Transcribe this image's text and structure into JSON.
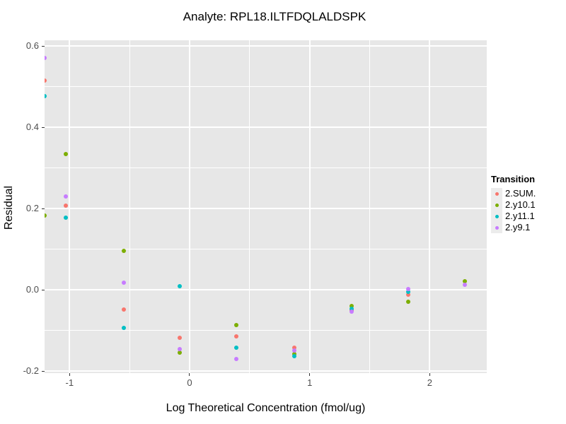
{
  "chart_data": {
    "type": "scatter",
    "title": "Analyte: RPL18.ILTFDQLALDSPK",
    "xlabel": "Log Theoretical Concentration (fmol/ug)",
    "ylabel": "Residual",
    "xlim": [
      -1.208,
      2.475
    ],
    "ylim": [
      -0.205,
      0.614
    ],
    "x_major_ticks": [
      -1,
      0,
      1,
      2
    ],
    "x_tick_labels": [
      "-1",
      "0",
      "1",
      "2"
    ],
    "x_minor_ticks": [
      -0.5,
      0.5,
      1.5
    ],
    "y_major_ticks": [
      -0.2,
      0.0,
      0.2,
      0.4,
      0.6
    ],
    "y_tick_labels": [
      "-0.2",
      "0.0",
      "0.2",
      "0.4",
      "0.6"
    ],
    "y_minor_ticks": [
      -0.1,
      0.1,
      0.3,
      0.5
    ],
    "grid": true,
    "panel_bg": "#E7E7E7",
    "gridline_color": "#FFFFFF",
    "legend": {
      "title": "Transition",
      "position": "right",
      "entries": [
        {
          "label": "2.SUM.",
          "color": "#F8766D"
        },
        {
          "label": "2.y10.1",
          "color": "#7CAE00"
        },
        {
          "label": "2.y11.1",
          "color": "#00BFC4"
        },
        {
          "label": "2.y9.1",
          "color": "#C77CFF"
        }
      ]
    },
    "series": [
      {
        "name": "2.SUM.",
        "color": "#F8766D",
        "points": [
          [
            -1.21,
            0.515
          ],
          [
            -1.03,
            0.207
          ],
          [
            -0.55,
            -0.049
          ],
          [
            -0.08,
            -0.118
          ],
          [
            0.39,
            -0.115
          ],
          [
            0.87,
            -0.143
          ],
          [
            1.35,
            -0.05
          ],
          [
            1.82,
            -0.012
          ]
        ]
      },
      {
        "name": "2.y10.1",
        "color": "#7CAE00",
        "points": [
          [
            -1.21,
            0.183
          ],
          [
            -1.03,
            0.334
          ],
          [
            -0.55,
            0.096
          ],
          [
            -0.08,
            -0.155
          ],
          [
            0.39,
            -0.087
          ],
          [
            0.87,
            -0.158
          ],
          [
            1.35,
            -0.04
          ],
          [
            1.82,
            -0.03
          ],
          [
            2.29,
            0.021
          ]
        ]
      },
      {
        "name": "2.y11.1",
        "color": "#00BFC4",
        "points": [
          [
            -1.21,
            0.477
          ],
          [
            -1.03,
            0.177
          ],
          [
            -0.55,
            -0.094
          ],
          [
            -0.08,
            0.009
          ],
          [
            0.39,
            -0.143
          ],
          [
            0.87,
            -0.163
          ],
          [
            1.35,
            -0.047
          ],
          [
            1.82,
            -0.005
          ]
        ]
      },
      {
        "name": "2.y9.1",
        "color": "#C77CFF",
        "points": [
          [
            -1.21,
            0.57
          ],
          [
            -1.03,
            0.23
          ],
          [
            -0.55,
            0.017
          ],
          [
            -0.08,
            -0.146
          ],
          [
            0.39,
            -0.17
          ],
          [
            0.87,
            -0.15
          ],
          [
            1.35,
            -0.054
          ],
          [
            1.82,
            0.002
          ],
          [
            2.29,
            0.012
          ]
        ]
      }
    ]
  }
}
